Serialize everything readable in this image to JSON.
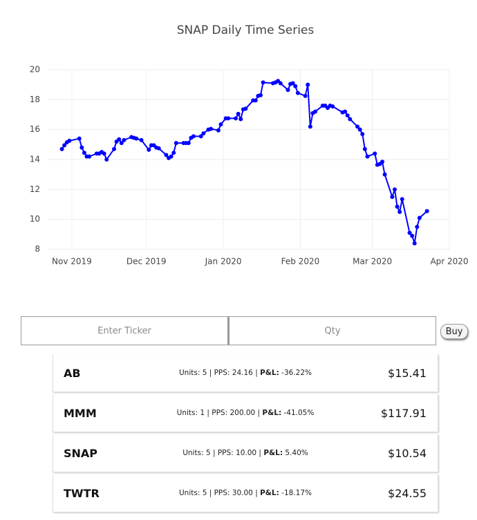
{
  "chart_data": {
    "type": "line",
    "title": "SNAP Daily Time Series",
    "x": [
      "2019-10-28",
      "2019-10-29",
      "2019-10-30",
      "2019-10-31",
      "2019-11-04",
      "2019-11-05",
      "2019-11-06",
      "2019-11-07",
      "2019-11-08",
      "2019-11-11",
      "2019-11-12",
      "2019-11-13",
      "2019-11-14",
      "2019-11-15",
      "2019-11-18",
      "2019-11-19",
      "2019-11-20",
      "2019-11-21",
      "2019-11-22",
      "2019-11-25",
      "2019-11-26",
      "2019-11-27",
      "2019-11-29",
      "2019-12-02",
      "2019-12-03",
      "2019-12-04",
      "2019-12-05",
      "2019-12-06",
      "2019-12-09",
      "2019-12-10",
      "2019-12-11",
      "2019-12-12",
      "2019-12-13",
      "2019-12-16",
      "2019-12-17",
      "2019-12-18",
      "2019-12-19",
      "2019-12-20",
      "2019-12-23",
      "2019-12-24",
      "2019-12-26",
      "2019-12-27",
      "2019-12-30",
      "2019-12-31",
      "2020-01-02",
      "2020-01-03",
      "2020-01-06",
      "2020-01-07",
      "2020-01-08",
      "2020-01-09",
      "2020-01-10",
      "2020-01-13",
      "2020-01-14",
      "2020-01-15",
      "2020-01-16",
      "2020-01-17",
      "2020-01-21",
      "2020-01-22",
      "2020-01-23",
      "2020-01-24",
      "2020-01-27",
      "2020-01-28",
      "2020-01-29",
      "2020-01-30",
      "2020-01-31",
      "2020-02-03",
      "2020-02-04",
      "2020-02-05",
      "2020-02-06",
      "2020-02-07",
      "2020-02-10",
      "2020-02-11",
      "2020-02-12",
      "2020-02-13",
      "2020-02-14",
      "2020-02-18",
      "2020-02-19",
      "2020-02-20",
      "2020-02-21",
      "2020-02-24",
      "2020-02-25",
      "2020-02-26",
      "2020-02-27",
      "2020-02-28",
      "2020-03-02",
      "2020-03-03",
      "2020-03-04",
      "2020-03-05",
      "2020-03-06",
      "2020-03-09",
      "2020-03-10",
      "2020-03-11",
      "2020-03-12",
      "2020-03-13",
      "2020-03-16",
      "2020-03-17",
      "2020-03-18",
      "2020-03-19",
      "2020-03-20",
      "2020-03-23"
    ],
    "series": [
      {
        "color": "#0000ff",
        "values": [
          14.7,
          14.95,
          15.15,
          15.25,
          15.4,
          14.8,
          14.45,
          14.2,
          14.2,
          14.4,
          14.4,
          14.5,
          14.4,
          14.0,
          14.7,
          15.2,
          15.35,
          15.1,
          15.3,
          15.5,
          15.45,
          15.4,
          15.3,
          14.65,
          14.95,
          14.95,
          14.8,
          14.75,
          14.3,
          14.1,
          14.2,
          14.45,
          15.1,
          15.1,
          15.1,
          15.1,
          15.45,
          15.55,
          15.55,
          15.75,
          16.0,
          16.05,
          15.95,
          16.35,
          16.75,
          16.75,
          16.75,
          17.05,
          16.7,
          17.35,
          17.4,
          17.95,
          17.95,
          18.25,
          18.3,
          19.15,
          19.1,
          19.15,
          19.25,
          19.1,
          18.65,
          19.05,
          19.1,
          18.9,
          18.45,
          18.25,
          19.0,
          16.2,
          17.1,
          17.2,
          17.6,
          17.6,
          17.45,
          17.6,
          17.55,
          17.15,
          17.2,
          16.95,
          16.7,
          16.2,
          16.0,
          15.7,
          14.7,
          14.2,
          14.4,
          13.65,
          13.7,
          13.85,
          13.0,
          11.5,
          12.0,
          10.85,
          10.5,
          11.35,
          9.1,
          8.9,
          8.4,
          9.5,
          10.1,
          10.55
        ]
      }
    ],
    "xlim": [
      "2019-10-22",
      "2020-04-01"
    ],
    "xticks": [
      {
        "value": "2019-11-01",
        "label": "Nov 2019"
      },
      {
        "value": "2019-12-01",
        "label": "Dec 2019"
      },
      {
        "value": "2020-01-01",
        "label": "Jan 2020"
      },
      {
        "value": "2020-02-01",
        "label": "Feb 2020"
      },
      {
        "value": "2020-03-01",
        "label": "Mar 2020"
      },
      {
        "value": "2020-04-01",
        "label": "Apr 2020"
      }
    ],
    "ylim": [
      8,
      20
    ],
    "yticks": [
      8,
      10,
      12,
      14,
      16,
      18,
      20
    ],
    "grid": true
  },
  "order_form": {
    "ticker_placeholder": "Enter Ticker",
    "qty_placeholder": "Qty",
    "button": "Buy"
  },
  "portfolio": {
    "rows": [
      {
        "ticker": "AB",
        "details": "Units: 5 | PPS: 24.16 | ",
        "pnl_label": "P&L:",
        "pnl": "-36.22%",
        "price": "$15.41"
      },
      {
        "ticker": "MMM",
        "details": "Units: 1 | PPS: 200.00 | ",
        "pnl_label": "P&L:",
        "pnl": "-41.05%",
        "price": "$117.91"
      },
      {
        "ticker": "SNAP",
        "details": "Units: 5 | PPS: 10.00 | ",
        "pnl_label": "P&L:",
        "pnl": "5.40%",
        "price": "$10.54"
      },
      {
        "ticker": "TWTR",
        "details": "Units: 5 | PPS: 30.00 | ",
        "pnl_label": "P&L:",
        "pnl": "-18.17%",
        "price": "$24.55"
      }
    ]
  }
}
